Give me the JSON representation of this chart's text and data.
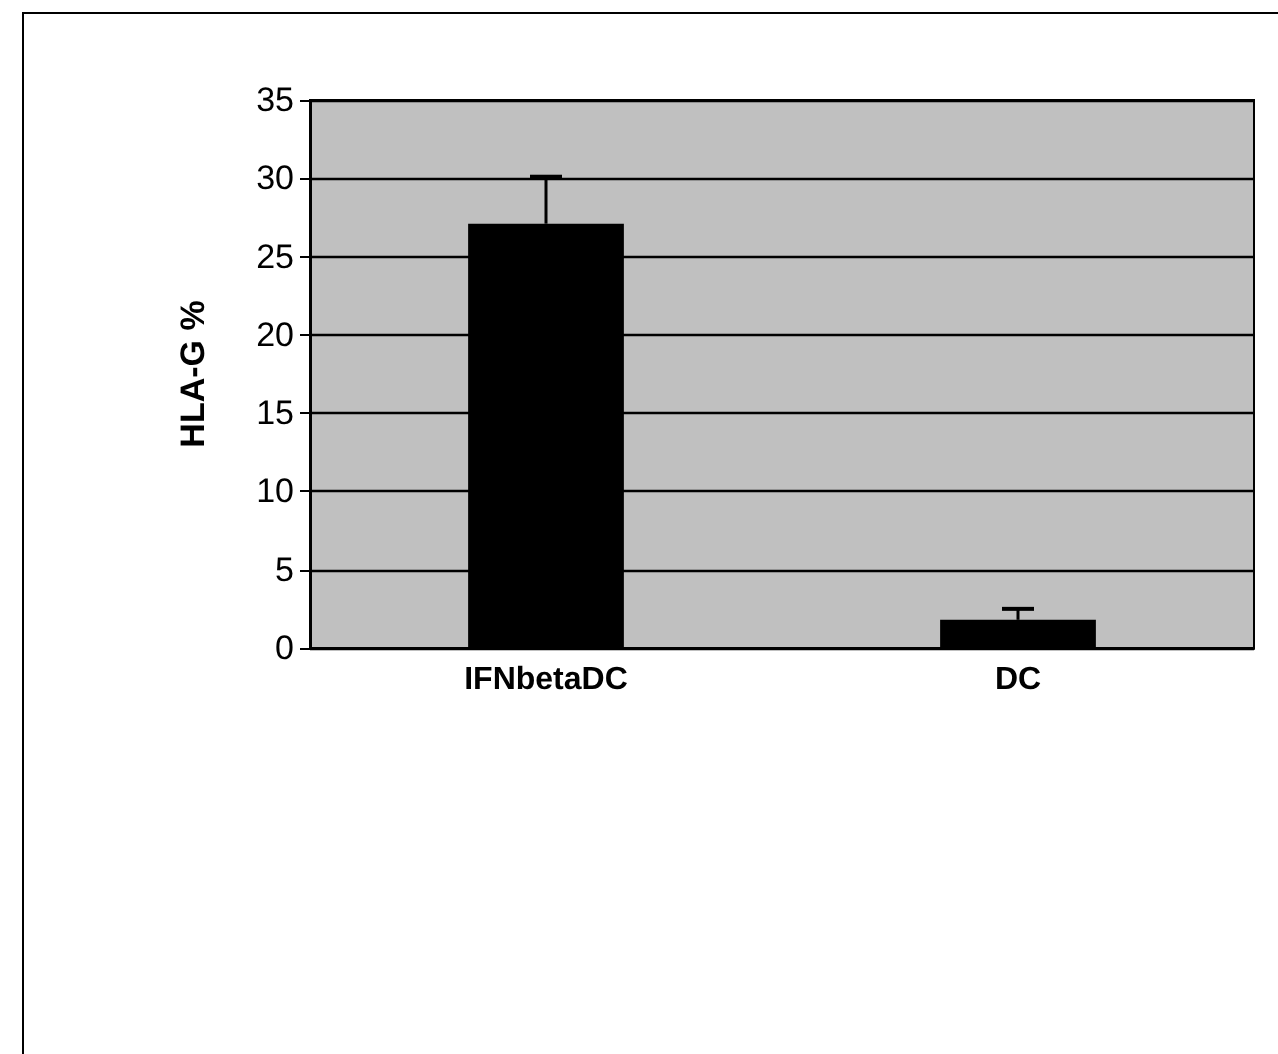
{
  "chart_data": {
    "type": "bar",
    "ylabel": "HLA-G %",
    "categories": [
      "IFNbetaDC",
      "DC"
    ],
    "values": [
      27.1,
      1.8
    ],
    "errors": [
      3.0,
      0.7
    ],
    "color": "#000000",
    "ylim": [
      0,
      35
    ],
    "yticks": [
      0,
      5,
      10,
      15,
      20,
      25,
      30,
      35
    ],
    "grid": "y"
  }
}
